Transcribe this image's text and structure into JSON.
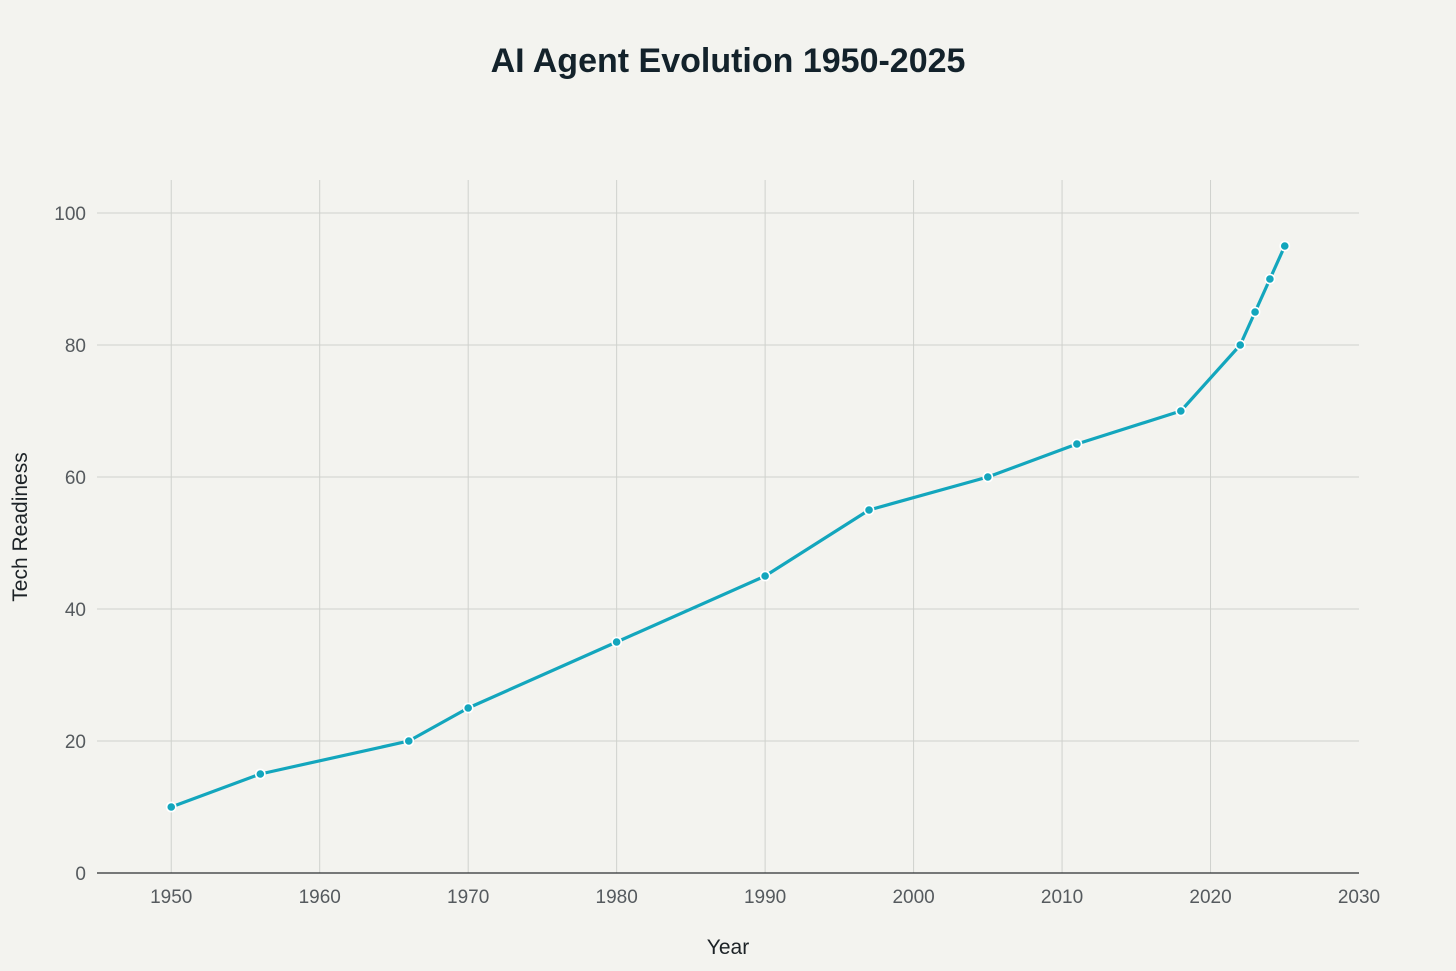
{
  "chart_data": {
    "type": "line",
    "title": "AI Agent Evolution 1950-2025",
    "xlabel": "Year",
    "ylabel": "Tech Readiness",
    "xlim": [
      1945,
      2030
    ],
    "ylim": [
      0,
      105
    ],
    "x_ticks": [
      1950,
      1960,
      1970,
      1980,
      1990,
      2000,
      2010,
      2020,
      2030
    ],
    "y_ticks": [
      0,
      20,
      40,
      60,
      80,
      100
    ],
    "grid": true,
    "series": [
      {
        "name": "Tech Readiness",
        "color": "#13a6bd",
        "x": [
          1950,
          1956,
          1966,
          1970,
          1980,
          1990,
          1997,
          2005,
          2011,
          2018,
          2022,
          2023,
          2024,
          2025
        ],
        "y": [
          10,
          15,
          20,
          25,
          35,
          45,
          55,
          60,
          65,
          70,
          80,
          85,
          90,
          95
        ]
      }
    ]
  }
}
